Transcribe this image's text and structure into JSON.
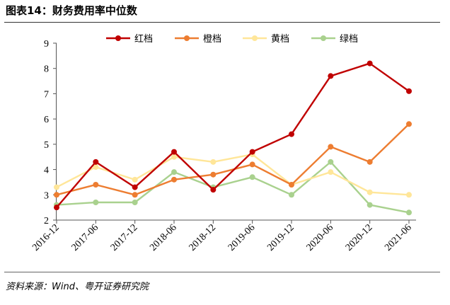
{
  "figure": {
    "title": "图表14：财务费用率中位数",
    "source": "资料来源：Wind、粤开证券研究院"
  },
  "chart_data": {
    "type": "line",
    "title": "",
    "xlabel": "",
    "ylabel": "",
    "categories": [
      "2016-12",
      "2017-06",
      "2017-12",
      "2018-06",
      "2018-12",
      "2019-06",
      "2019-12",
      "2020-06",
      "2020-12",
      "2021-06"
    ],
    "ylim": [
      2,
      9
    ],
    "yticks": [
      2,
      3,
      4,
      5,
      6,
      7,
      8,
      9
    ],
    "grid": false,
    "legend_position": "top",
    "series": [
      {
        "name": "红档",
        "color": "#c00000",
        "values": [
          2.5,
          4.3,
          3.3,
          4.7,
          3.2,
          4.7,
          5.4,
          7.7,
          8.2,
          7.1
        ]
      },
      {
        "name": "橙档",
        "color": "#ed7d31",
        "values": [
          3.0,
          3.4,
          3.0,
          3.6,
          3.8,
          4.2,
          3.4,
          4.9,
          4.3,
          5.8
        ]
      },
      {
        "name": "黄档",
        "color": "#ffe699",
        "values": [
          3.3,
          4.1,
          3.6,
          4.5,
          4.3,
          4.6,
          3.4,
          3.9,
          3.1,
          3.0
        ]
      },
      {
        "name": "绿档",
        "color": "#a9d18e",
        "values": [
          2.6,
          2.7,
          2.7,
          3.9,
          3.3,
          3.7,
          3.0,
          4.3,
          2.6,
          2.3
        ]
      }
    ]
  }
}
